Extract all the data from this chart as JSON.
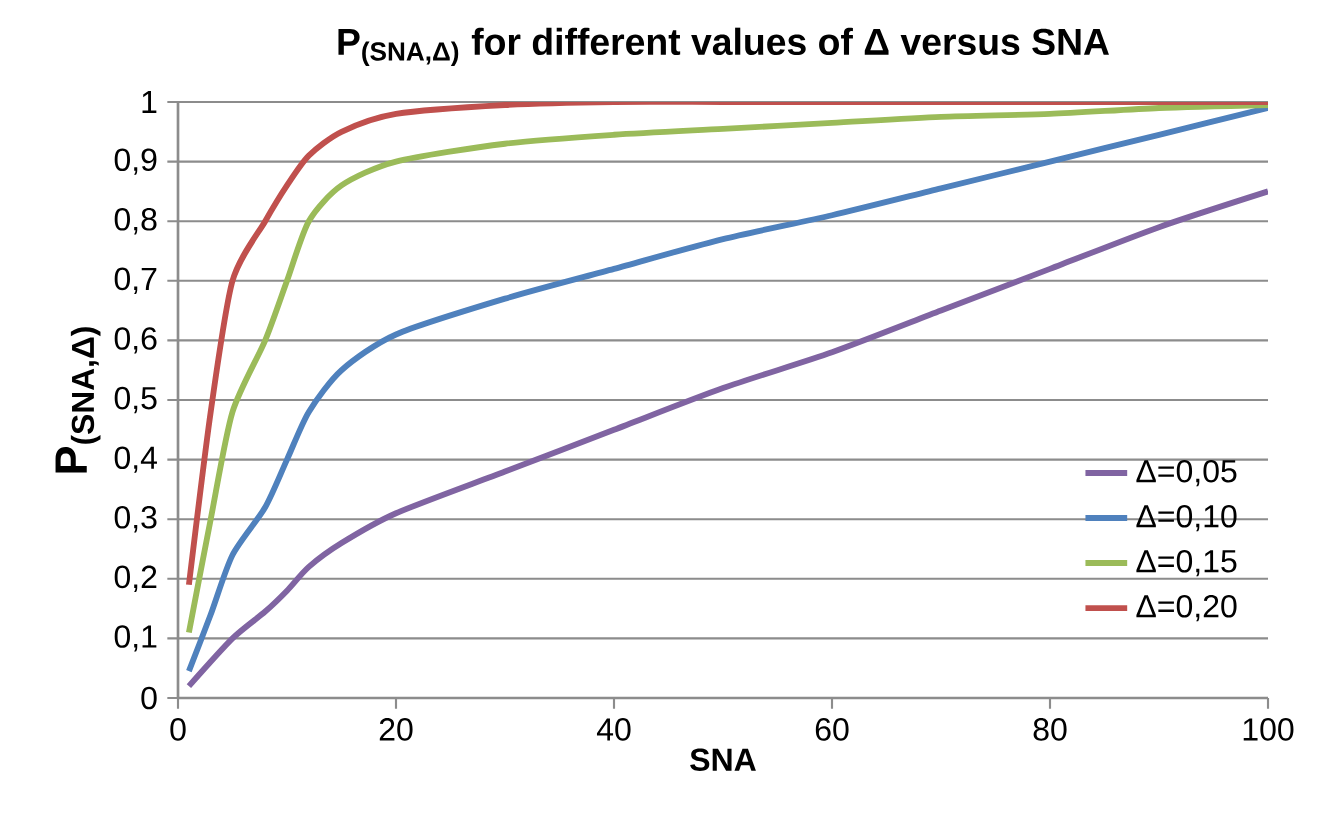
{
  "chart_data": {
    "type": "line",
    "title": "P$_{(SNA,Δ)}$ for different values of Δ versus SNA",
    "xlabel": "SNA",
    "ylabel": "P$_{(SNA,Δ)}$",
    "xlim": [
      0,
      100
    ],
    "xticks": [
      0,
      20,
      40,
      60,
      80,
      100
    ],
    "ylim": [
      0,
      1
    ],
    "yticks": [
      0,
      {
        "value": 0.1,
        "label": "0,1"
      },
      {
        "value": 0.2,
        "label": "0,2"
      },
      {
        "value": 0.3,
        "label": "0,3"
      },
      {
        "value": 0.4,
        "label": "0,4"
      },
      {
        "value": 0.5,
        "label": "0,5"
      },
      {
        "value": 0.6,
        "label": "0,6"
      },
      {
        "value": 0.7,
        "label": "0,7"
      },
      {
        "value": 0.8,
        "label": "0,8"
      },
      {
        "value": 0.9,
        "label": "0,9"
      },
      1
    ],
    "grid": "y",
    "legend": "right",
    "marker": "none",
    "line_style": "solid",
    "series": [
      {
        "name": "Δ=0,05",
        "color": "#8064a2",
        "x": [
          1,
          5,
          8,
          10,
          12,
          15,
          20,
          30,
          40,
          50,
          60,
          70,
          80,
          90,
          100
        ],
        "values": [
          0.02,
          0.1,
          0.145,
          0.18,
          0.22,
          0.26,
          0.31,
          0.38,
          0.45,
          0.52,
          0.58,
          0.65,
          0.72,
          0.79,
          0.85
        ]
      },
      {
        "name": "Δ=0,10",
        "color": "#4f81bd",
        "x": [
          1,
          3,
          5,
          8,
          10,
          12,
          15,
          20,
          30,
          40,
          50,
          60,
          70,
          80,
          90,
          100
        ],
        "values": [
          0.045,
          0.14,
          0.24,
          0.32,
          0.4,
          0.48,
          0.55,
          0.61,
          0.67,
          0.72,
          0.77,
          0.81,
          0.855,
          0.9,
          0.945,
          0.99
        ]
      },
      {
        "name": "Δ=0,15",
        "color": "#9bbb59",
        "x": [
          1,
          3,
          5,
          8,
          10,
          12,
          15,
          20,
          30,
          40,
          50,
          60,
          70,
          80,
          90,
          100
        ],
        "values": [
          0.11,
          0.3,
          0.48,
          0.6,
          0.7,
          0.8,
          0.86,
          0.9,
          0.93,
          0.945,
          0.955,
          0.965,
          0.975,
          0.98,
          0.99,
          0.995
        ]
      },
      {
        "name": "Δ=0,20",
        "color": "#c0504d",
        "x": [
          1,
          3,
          5,
          8,
          10,
          12,
          15,
          20,
          30,
          40,
          50,
          60,
          70,
          80,
          90,
          100
        ],
        "values": [
          0.19,
          0.48,
          0.7,
          0.8,
          0.86,
          0.91,
          0.95,
          0.98,
          0.995,
          1,
          1,
          1,
          1,
          1,
          1,
          1
        ]
      }
    ]
  }
}
